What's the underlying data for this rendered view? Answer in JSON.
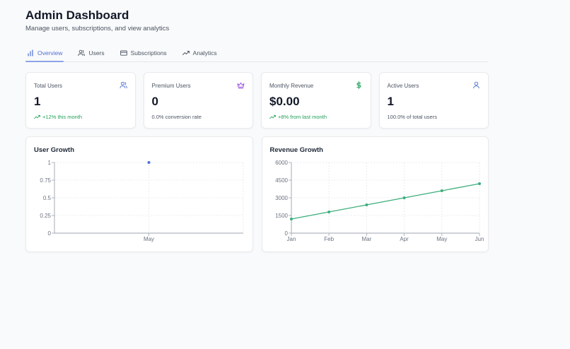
{
  "header": {
    "title": "Admin Dashboard",
    "subtitle": "Manage users, subscriptions, and view analytics"
  },
  "tabs": [
    {
      "label": "Overview",
      "icon": "bar-chart-icon",
      "active": true
    },
    {
      "label": "Users",
      "icon": "users-icon",
      "active": false
    },
    {
      "label": "Subscriptions",
      "icon": "credit-card-icon",
      "active": false
    },
    {
      "label": "Analytics",
      "icon": "trending-up-icon",
      "active": false
    }
  ],
  "stats": [
    {
      "label": "Total Users",
      "value": "1",
      "note": "+12% this month",
      "note_color": "#22a05a",
      "icon": "users-icon",
      "icon_color": "#5b7bd5"
    },
    {
      "label": "Premium Users",
      "value": "0",
      "note": "0.0% conversion rate",
      "note_color": "#4b5563",
      "icon": "crown-icon",
      "icon_color": "#9b51e0"
    },
    {
      "label": "Monthly Revenue",
      "value": "$0.00",
      "note": "+8% from last month",
      "note_color": "#22a05a",
      "icon": "dollar-icon",
      "icon_color": "#22a05a"
    },
    {
      "label": "Active Users",
      "value": "1",
      "note": "100.0% of total users",
      "note_color": "#4b5563",
      "icon": "user-icon",
      "icon_color": "#5b7bd5"
    }
  ],
  "charts": {
    "user_growth": {
      "title": "User Growth"
    },
    "revenue_growth": {
      "title": "Revenue Growth"
    }
  },
  "chart_data": [
    {
      "type": "line",
      "title": "User Growth",
      "categories": [
        "May"
      ],
      "series": [
        {
          "name": "users",
          "values": [
            1
          ],
          "color": "#4f6fd6"
        }
      ],
      "yticks": [
        "0",
        "0.25",
        "0.5",
        "0.75",
        "1"
      ],
      "ylim": [
        0,
        1
      ],
      "grid": true
    },
    {
      "type": "line",
      "title": "Revenue Growth",
      "categories": [
        "Jan",
        "Feb",
        "Mar",
        "Apr",
        "May",
        "Jun"
      ],
      "series": [
        {
          "name": "revenue",
          "values": [
            1200,
            1800,
            2400,
            3000,
            3600,
            4200
          ],
          "color": "#3dae7c"
        }
      ],
      "yticks": [
        "0",
        "1500",
        "3000",
        "4500",
        "6000"
      ],
      "ylim": [
        0,
        6000
      ],
      "grid": true
    }
  ]
}
